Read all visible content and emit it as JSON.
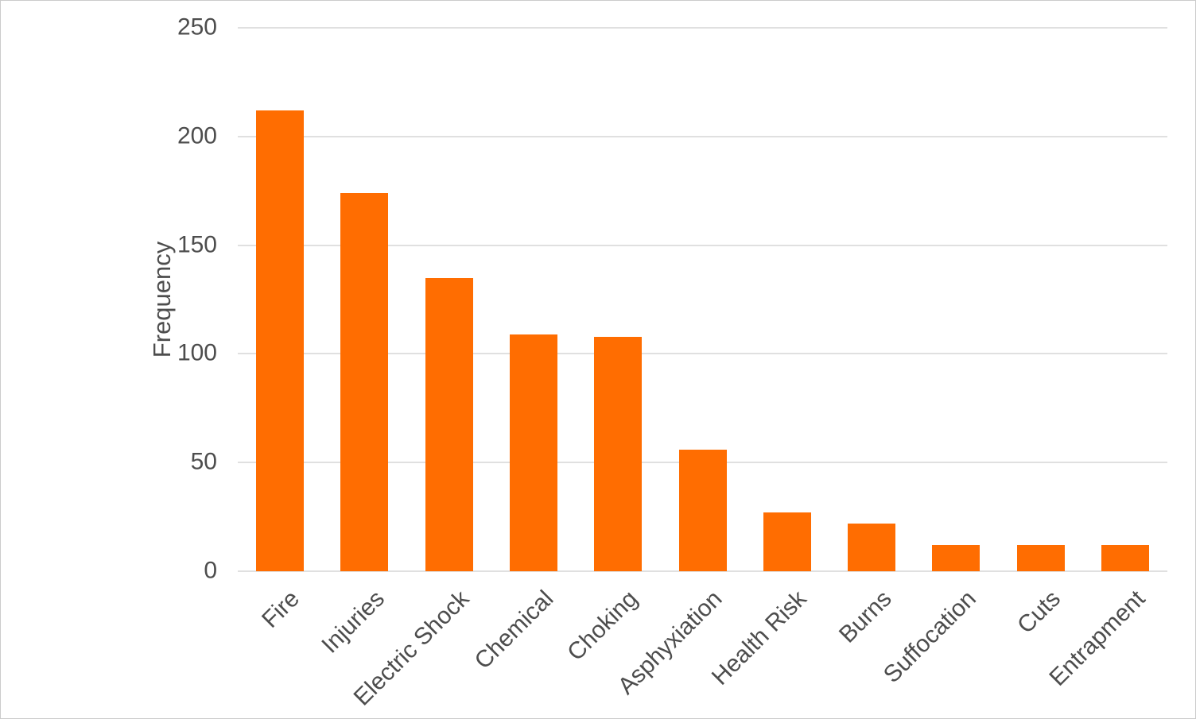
{
  "chart_data": {
    "type": "bar",
    "title": "",
    "xlabel": "",
    "ylabel": "Frequency",
    "categories": [
      "Fire",
      "Injuries",
      "Electric Shock",
      "Chemical",
      "Choking",
      "Asphyxiation",
      "Health Risk",
      "Burns",
      "Suffocation",
      "Cuts",
      "Entrapment"
    ],
    "values": [
      212,
      174,
      135,
      109,
      108,
      56,
      27,
      22,
      12,
      12,
      12
    ],
    "ylim": [
      0,
      250
    ],
    "yticks": [
      0,
      50,
      100,
      150,
      200,
      250
    ],
    "grid": true,
    "legend": "none",
    "bar_color": "#FF6D01",
    "gridline_color": "#E0E0E0",
    "axis_text_color": "#4D4D4D",
    "frame_border_color": "#CBCBCB"
  }
}
